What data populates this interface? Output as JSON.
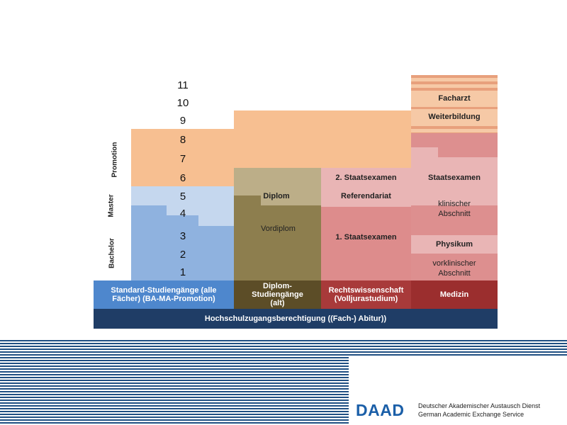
{
  "diagram": {
    "years": [
      "11",
      "10",
      "9",
      "8",
      "7",
      "6",
      "5",
      "4",
      "3",
      "2",
      "1"
    ],
    "side_labels": {
      "promotion": "Promotion",
      "master": "Master",
      "bachelor": "Bachelor"
    },
    "columns": {
      "standard": "Standard-Studiengänge  (alle Fächer) (BA-MA-Promotion)",
      "diplom": "Diplom-Studiengänge (alt)",
      "recht": "Rechtswissenschaft (Volljurastudium)",
      "medizin": "Medizin"
    },
    "base": "Hochschulzugangsberechtigung ((Fach-) Abitur))",
    "diplom_blocks": {
      "diplom": "Diplom",
      "vordiplom": "Vordiplom"
    },
    "recht_blocks": {
      "staatsexamen2": "2. Staatsexamen",
      "referendariat": "Referendariat",
      "staatsexamen1": "1. Staatsexamen"
    },
    "medizin_blocks": {
      "facharzt": "Facharzt",
      "weiterbildung": "Weiterbildung",
      "staatsexamen": "Staatsexamen",
      "klinisch": "klinischer Abschnitt",
      "physikum": "Physikum",
      "vorklinisch": "vorklinischer Abschnitt"
    }
  },
  "footer": {
    "logo": "DAAD",
    "org_de": "Deutscher Akademischer Austausch Dienst",
    "org_en": "German Academic Exchange Service"
  },
  "colors": {
    "navy": "#1f3d66",
    "promotion_orange": "#f7bf91",
    "master_light_blue": "#c5d7ee",
    "bachelor_blue": "#8fb2df",
    "standard_blue": "#4e87cd",
    "diplom_olive": "#8d7e4e",
    "diplom_khaki": "#bcae88",
    "diplom_dark": "#5c4d27",
    "recht_pink": "#dd8c8c",
    "recht_light": "#e9b5b5",
    "recht_red": "#a83a3a",
    "medizin_pink": "#dd8f8f",
    "medizin_red": "#9b2e2e",
    "footer_blue": "#1f4f82",
    "daad_blue": "#1b5fa8"
  }
}
